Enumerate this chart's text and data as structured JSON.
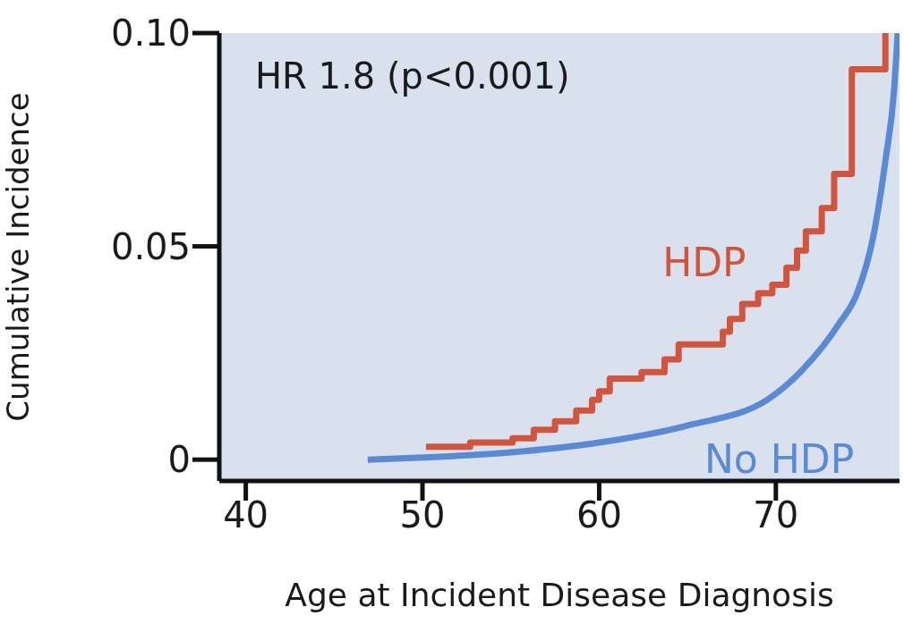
{
  "chart_data": {
    "type": "line",
    "xlabel": "Age at Incident Disease Diagnosis",
    "ylabel": "Cumulative Incidence",
    "annotations": [
      "HR 1.8 (p<0.001)"
    ],
    "xlim": [
      38.5,
      77
    ],
    "xticks": [
      40,
      50,
      60,
      70
    ],
    "ylim": [
      -0.005,
      0.1
    ],
    "yticks": [
      0,
      0.05,
      {
        "value": 0.1,
        "label": "0.10"
      }
    ],
    "series": [
      {
        "name": "HDP",
        "type": "step",
        "color": "#d0553c",
        "x": [
          50.2,
          52.7,
          55.1,
          56.3,
          57.5,
          58.7,
          59.6,
          60.0,
          60.6,
          62.4,
          63.7,
          64.5,
          67.0,
          67.4,
          68.1,
          69.0,
          69.8,
          70.6,
          71.2,
          71.7,
          72.6,
          73.3,
          74.3,
          76.2
        ],
        "values": [
          0.003,
          0.004,
          0.005,
          0.007,
          0.009,
          0.0115,
          0.014,
          0.016,
          0.019,
          0.0205,
          0.0235,
          0.027,
          0.03,
          0.033,
          0.0365,
          0.039,
          0.041,
          0.045,
          0.049,
          0.0535,
          0.059,
          0.067,
          0.0915,
          0.1
        ]
      },
      {
        "name": "No HDP",
        "type": "line",
        "color": "#5b8ad4",
        "x": [
          46.9,
          50,
          55,
          60,
          65,
          69.5,
          71.5,
          73.6,
          74.6,
          75.5,
          76.2,
          76.7,
          76.9
        ],
        "values": [
          0,
          0.0005,
          0.0017,
          0.004,
          0.008,
          0.014,
          0.021,
          0.032,
          0.039,
          0.052,
          0.07,
          0.087,
          0.1
        ]
      }
    ]
  }
}
